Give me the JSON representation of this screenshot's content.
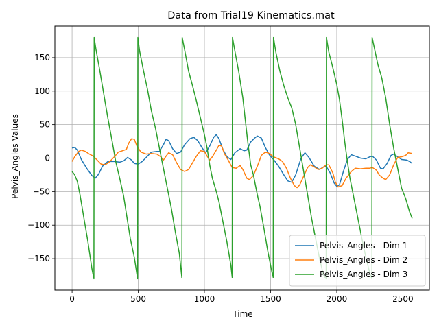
{
  "chart_data": {
    "type": "line",
    "title": "Data from Trial19 Kinematics.mat",
    "xlabel": "Time",
    "ylabel": "Pelvis_Angles Values",
    "xlim": [
      -130,
      2700
    ],
    "ylim": [
      -197,
      197
    ],
    "xticks": [
      0,
      500,
      1000,
      1500,
      2000,
      2500
    ],
    "yticks": [
      -150,
      -100,
      -50,
      0,
      50,
      100,
      150
    ],
    "grid": true,
    "legend_position": "lower-right",
    "series": [
      {
        "name": "Pelvis_Angles - Dim 1",
        "color": "#1f77b4",
        "points": [
          [
            0,
            15
          ],
          [
            20,
            16
          ],
          [
            40,
            12
          ],
          [
            70,
            -2
          ],
          [
            110,
            -15
          ],
          [
            150,
            -26
          ],
          [
            175,
            -30
          ],
          [
            200,
            -24
          ],
          [
            230,
            -12
          ],
          [
            270,
            -5
          ],
          [
            320,
            -5
          ],
          [
            360,
            -6
          ],
          [
            390,
            -4
          ],
          [
            420,
            1
          ],
          [
            450,
            -3
          ],
          [
            470,
            -8
          ],
          [
            500,
            -9
          ],
          [
            530,
            -5
          ],
          [
            560,
            1
          ],
          [
            600,
            9
          ],
          [
            640,
            10
          ],
          [
            660,
            10
          ],
          [
            690,
            20
          ],
          [
            710,
            28
          ],
          [
            730,
            26
          ],
          [
            760,
            14
          ],
          [
            790,
            7
          ],
          [
            820,
            9
          ],
          [
            850,
            20
          ],
          [
            890,
            29
          ],
          [
            920,
            31
          ],
          [
            950,
            26
          ],
          [
            980,
            16
          ],
          [
            1010,
            8
          ],
          [
            1040,
            18
          ],
          [
            1070,
            31
          ],
          [
            1090,
            35
          ],
          [
            1110,
            29
          ],
          [
            1140,
            13
          ],
          [
            1170,
            2
          ],
          [
            1200,
            -2
          ],
          [
            1230,
            8
          ],
          [
            1270,
            14
          ],
          [
            1300,
            11
          ],
          [
            1320,
            12
          ],
          [
            1350,
            24
          ],
          [
            1380,
            30
          ],
          [
            1400,
            33
          ],
          [
            1430,
            30
          ],
          [
            1460,
            16
          ],
          [
            1490,
            5
          ],
          [
            1530,
            -4
          ],
          [
            1560,
            -12
          ],
          [
            1600,
            -25
          ],
          [
            1630,
            -34
          ],
          [
            1660,
            -36
          ],
          [
            1690,
            -25
          ],
          [
            1730,
            0
          ],
          [
            1760,
            8
          ],
          [
            1790,
            1
          ],
          [
            1830,
            -12
          ],
          [
            1870,
            -17
          ],
          [
            1900,
            -13
          ],
          [
            1920,
            -12
          ],
          [
            1950,
            -22
          ],
          [
            1980,
            -37
          ],
          [
            2000,
            -42
          ],
          [
            2020,
            -40
          ],
          [
            2050,
            -20
          ],
          [
            2080,
            -2
          ],
          [
            2110,
            5
          ],
          [
            2140,
            3
          ],
          [
            2180,
            0
          ],
          [
            2220,
            -1
          ],
          [
            2250,
            2
          ],
          [
            2270,
            3
          ],
          [
            2300,
            -3
          ],
          [
            2330,
            -15
          ],
          [
            2350,
            -16
          ],
          [
            2380,
            -8
          ],
          [
            2410,
            4
          ],
          [
            2430,
            6
          ],
          [
            2460,
            2
          ],
          [
            2490,
            -2
          ],
          [
            2530,
            -3
          ],
          [
            2550,
            -5
          ],
          [
            2570,
            -8
          ]
        ]
      },
      {
        "name": "Pelvis_Angles - Dim 2",
        "color": "#ff7f0e",
        "points": [
          [
            0,
            -5
          ],
          [
            20,
            2
          ],
          [
            50,
            10
          ],
          [
            70,
            12
          ],
          [
            100,
            10
          ],
          [
            130,
            6
          ],
          [
            160,
            3
          ],
          [
            190,
            -3
          ],
          [
            220,
            -9
          ],
          [
            250,
            -10
          ],
          [
            280,
            -6
          ],
          [
            320,
            2
          ],
          [
            350,
            9
          ],
          [
            380,
            11
          ],
          [
            410,
            13
          ],
          [
            430,
            23
          ],
          [
            450,
            29
          ],
          [
            470,
            28
          ],
          [
            490,
            18
          ],
          [
            520,
            9
          ],
          [
            560,
            6
          ],
          [
            600,
            7
          ],
          [
            640,
            6
          ],
          [
            670,
            2
          ],
          [
            690,
            -3
          ],
          [
            710,
            3
          ],
          [
            730,
            8
          ],
          [
            760,
            5
          ],
          [
            790,
            -7
          ],
          [
            820,
            -17
          ],
          [
            850,
            -20
          ],
          [
            880,
            -17
          ],
          [
            910,
            -7
          ],
          [
            940,
            3
          ],
          [
            970,
            11
          ],
          [
            1000,
            10
          ],
          [
            1020,
            3
          ],
          [
            1040,
            -3
          ],
          [
            1060,
            2
          ],
          [
            1090,
            12
          ],
          [
            1110,
            19
          ],
          [
            1130,
            18
          ],
          [
            1150,
            7
          ],
          [
            1180,
            -3
          ],
          [
            1210,
            -14
          ],
          [
            1240,
            -15
          ],
          [
            1270,
            -11
          ],
          [
            1290,
            -17
          ],
          [
            1320,
            -30
          ],
          [
            1340,
            -32
          ],
          [
            1370,
            -26
          ],
          [
            1400,
            -12
          ],
          [
            1430,
            4
          ],
          [
            1460,
            9
          ],
          [
            1490,
            7
          ],
          [
            1520,
            2
          ],
          [
            1560,
            -1
          ],
          [
            1590,
            -5
          ],
          [
            1620,
            -15
          ],
          [
            1650,
            -30
          ],
          [
            1680,
            -41
          ],
          [
            1700,
            -44
          ],
          [
            1720,
            -40
          ],
          [
            1750,
            -27
          ],
          [
            1780,
            -14
          ],
          [
            1800,
            -10
          ],
          [
            1830,
            -13
          ],
          [
            1860,
            -17
          ],
          [
            1890,
            -15
          ],
          [
            1920,
            -10
          ],
          [
            1940,
            -10
          ],
          [
            1970,
            -22
          ],
          [
            1990,
            -36
          ],
          [
            2010,
            -43
          ],
          [
            2040,
            -41
          ],
          [
            2070,
            -30
          ],
          [
            2110,
            -20
          ],
          [
            2140,
            -15
          ],
          [
            2180,
            -16
          ],
          [
            2220,
            -15
          ],
          [
            2250,
            -15
          ],
          [
            2270,
            -14
          ],
          [
            2300,
            -18
          ],
          [
            2320,
            -25
          ],
          [
            2350,
            -30
          ],
          [
            2370,
            -32
          ],
          [
            2400,
            -25
          ],
          [
            2430,
            -10
          ],
          [
            2460,
            1
          ],
          [
            2490,
            2
          ],
          [
            2520,
            4
          ],
          [
            2540,
            8
          ],
          [
            2570,
            7
          ]
        ]
      },
      {
        "name": "Pelvis_Angles - Dim 3",
        "color": "#2ca02c",
        "points": [
          [
            0,
            -20
          ],
          [
            20,
            -25
          ],
          [
            40,
            -35
          ],
          [
            60,
            -55
          ],
          [
            90,
            -90
          ],
          [
            120,
            -125
          ],
          [
            150,
            -165
          ],
          [
            165,
            -180
          ],
          [
            167,
            180
          ],
          [
            180,
            163
          ],
          [
            210,
            130
          ],
          [
            240,
            95
          ],
          [
            270,
            60
          ],
          [
            300,
            28
          ],
          [
            330,
            -5
          ],
          [
            360,
            -30
          ],
          [
            390,
            -57
          ],
          [
            420,
            -95
          ],
          [
            440,
            -120
          ],
          [
            470,
            -148
          ],
          [
            495,
            -180
          ],
          [
            497,
            180
          ],
          [
            510,
            160
          ],
          [
            540,
            130
          ],
          [
            570,
            102
          ],
          [
            600,
            70
          ],
          [
            630,
            45
          ],
          [
            660,
            15
          ],
          [
            690,
            -15
          ],
          [
            720,
            -45
          ],
          [
            750,
            -75
          ],
          [
            780,
            -110
          ],
          [
            810,
            -142
          ],
          [
            830,
            -179
          ],
          [
            832,
            180
          ],
          [
            850,
            162
          ],
          [
            880,
            130
          ],
          [
            910,
            108
          ],
          [
            940,
            85
          ],
          [
            970,
            60
          ],
          [
            1000,
            35
          ],
          [
            1020,
            15
          ],
          [
            1040,
            -10
          ],
          [
            1060,
            -30
          ],
          [
            1090,
            -50
          ],
          [
            1110,
            -65
          ],
          [
            1140,
            -95
          ],
          [
            1170,
            -125
          ],
          [
            1200,
            -160
          ],
          [
            1210,
            -178
          ],
          [
            1212,
            180
          ],
          [
            1230,
            160
          ],
          [
            1260,
            128
          ],
          [
            1290,
            90
          ],
          [
            1310,
            55
          ],
          [
            1330,
            20
          ],
          [
            1350,
            -10
          ],
          [
            1370,
            -25
          ],
          [
            1400,
            -55
          ],
          [
            1420,
            -72
          ],
          [
            1450,
            -105
          ],
          [
            1480,
            -140
          ],
          [
            1510,
            -170
          ],
          [
            1520,
            -178
          ],
          [
            1522,
            180
          ],
          [
            1540,
            158
          ],
          [
            1570,
            130
          ],
          [
            1600,
            108
          ],
          [
            1630,
            90
          ],
          [
            1660,
            75
          ],
          [
            1690,
            50
          ],
          [
            1720,
            15
          ],
          [
            1750,
            -20
          ],
          [
            1780,
            -55
          ],
          [
            1810,
            -90
          ],
          [
            1840,
            -120
          ],
          [
            1870,
            -150
          ],
          [
            1900,
            -175
          ],
          [
            1920,
            -180
          ],
          [
            1922,
            180
          ],
          [
            1940,
            158
          ],
          [
            1970,
            135
          ],
          [
            2000,
            110
          ],
          [
            2020,
            88
          ],
          [
            2040,
            58
          ],
          [
            2060,
            25
          ],
          [
            2080,
            -5
          ],
          [
            2100,
            -30
          ],
          [
            2130,
            -60
          ],
          [
            2160,
            -90
          ],
          [
            2190,
            -120
          ],
          [
            2220,
            -148
          ],
          [
            2250,
            -172
          ],
          [
            2265,
            -180
          ],
          [
            2267,
            180
          ],
          [
            2280,
            168
          ],
          [
            2310,
            140
          ],
          [
            2340,
            120
          ],
          [
            2370,
            90
          ],
          [
            2400,
            50
          ],
          [
            2430,
            15
          ],
          [
            2460,
            -15
          ],
          [
            2490,
            -45
          ],
          [
            2520,
            -60
          ],
          [
            2550,
            -80
          ],
          [
            2570,
            -90
          ]
        ]
      }
    ]
  }
}
